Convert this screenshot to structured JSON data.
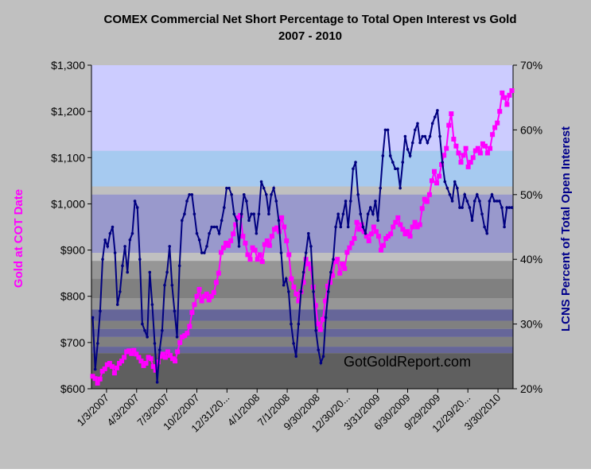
{
  "chart_data": {
    "type": "line",
    "title": "COMEX Commercial Net Short Percentage to Total Open Interest vs Gold",
    "subtitle": "2007 - 2010",
    "ylabel_left": "Gold at COT Date",
    "ylabel_right": "LCNS Percent of Total Open Interest",
    "watermark": "GotGoldReport.com",
    "ylim_left": [
      600,
      1300
    ],
    "ylim_right": [
      20,
      70
    ],
    "yticks_left": [
      "$600",
      "$700",
      "$800",
      "$900",
      "$1,000",
      "$1,100",
      "$1,200",
      "$1,300"
    ],
    "yticks_right": [
      "20%",
      "30%",
      "40%",
      "50%",
      "60%",
      "70%"
    ],
    "xtick_labels": [
      "1/3/2007",
      "4/3/2007",
      "7/3/2007",
      "10/2/2007",
      "12/31/20...",
      "4/1/2008",
      "7/1/2008",
      "9/30/2008",
      "12/30/20...",
      "3/31/2009",
      "6/30/2009",
      "9/29/2009",
      "12/29/20...",
      "3/30/2010"
    ],
    "legend": "none",
    "grid": false,
    "background_bands_color": [
      "#ccccff",
      "#a6caf0",
      "#c0c0c0",
      "#9999cc",
      "#969696",
      "#808080",
      "#666699",
      "#5f5f5f"
    ],
    "colors": {
      "gold": "#ff00ff",
      "lcns": "#000080",
      "axis": "#000000"
    },
    "series": [
      {
        "name": "Gold at COT Date",
        "axis": "left",
        "values": [
          627,
          622,
          612,
          621,
          638,
          643,
          652,
          655,
          648,
          634,
          645,
          655,
          660,
          668,
          680,
          682,
          676,
          683,
          675,
          668,
          660,
          650,
          655,
          668,
          665,
          648,
          640,
          658,
          670,
          675,
          668,
          680,
          672,
          665,
          660,
          680,
          700,
          712,
          715,
          720,
          735,
          765,
          782,
          800,
          815,
          790,
          800,
          805,
          792,
          800,
          808,
          830,
          850,
          895,
          905,
          915,
          910,
          920,
          935,
          955,
          970,
          975,
          930,
          915,
          890,
          880,
          905,
          900,
          880,
          890,
          875,
          912,
          920,
          910,
          930,
          945,
          948,
          940,
          970,
          950,
          920,
          890,
          838,
          820,
          805,
          790,
          810,
          830,
          880,
          870,
          860,
          820,
          780,
          740,
          728,
          750,
          790,
          822,
          830,
          845,
          875,
          880,
          850,
          870,
          860,
          895,
          905,
          915,
          925,
          960,
          945,
          955,
          940,
          930,
          920,
          935,
          950,
          940,
          930,
          900,
          910,
          925,
          930,
          935,
          950,
          960,
          970,
          955,
          945,
          935,
          940,
          930,
          950,
          960,
          950,
          955,
          990,
          1010,
          1005,
          1020,
          1050,
          1070,
          1045,
          1060,
          1085,
          1105,
          1120,
          1170,
          1195,
          1140,
          1125,
          1110,
          1090,
          1105,
          1120,
          1080,
          1090,
          1100,
          1115,
          1120,
          1110,
          1130,
          1125,
          1110,
          1120,
          1150,
          1165,
          1175,
          1200,
          1240,
          1230,
          1215,
          1235,
          1245
        ]
      },
      {
        "name": "LCNS Percent of Total Open Interest",
        "axis": "right",
        "values": [
          31,
          23,
          27,
          32,
          40,
          43,
          42,
          44,
          45,
          41,
          33,
          35,
          39,
          42,
          38,
          43,
          44,
          49,
          48,
          40,
          30,
          29,
          28,
          38,
          33,
          27,
          21,
          26,
          29,
          36,
          38,
          42,
          36,
          32,
          28,
          39,
          46,
          47,
          49,
          50,
          50,
          47,
          44,
          43,
          41,
          41,
          42,
          44,
          45,
          45,
          45,
          44,
          46,
          48,
          51,
          51,
          50,
          47,
          46,
          42,
          47,
          50,
          49,
          46,
          47,
          47,
          44,
          47,
          52,
          51,
          50,
          47,
          50,
          51,
          49,
          46,
          41,
          36,
          37,
          35,
          30,
          27,
          25,
          30,
          35,
          38,
          41,
          44,
          42,
          35,
          29,
          26,
          24,
          25,
          31,
          35,
          38,
          40,
          45,
          47,
          45,
          47,
          49,
          45,
          49,
          54,
          55,
          50,
          47,
          45,
          44,
          47,
          48,
          47,
          49,
          46,
          51,
          56,
          60,
          60,
          56,
          55,
          54,
          54,
          51,
          55,
          59,
          57,
          56,
          58,
          60,
          61,
          58,
          59,
          59,
          58,
          59,
          61,
          62,
          63,
          59,
          55,
          52,
          51,
          50,
          49,
          52,
          51,
          48,
          48,
          50,
          49,
          48,
          46,
          49,
          50,
          49,
          47,
          45,
          44,
          49,
          50,
          49,
          49,
          49,
          48,
          45,
          48,
          48,
          48
        ]
      }
    ]
  }
}
